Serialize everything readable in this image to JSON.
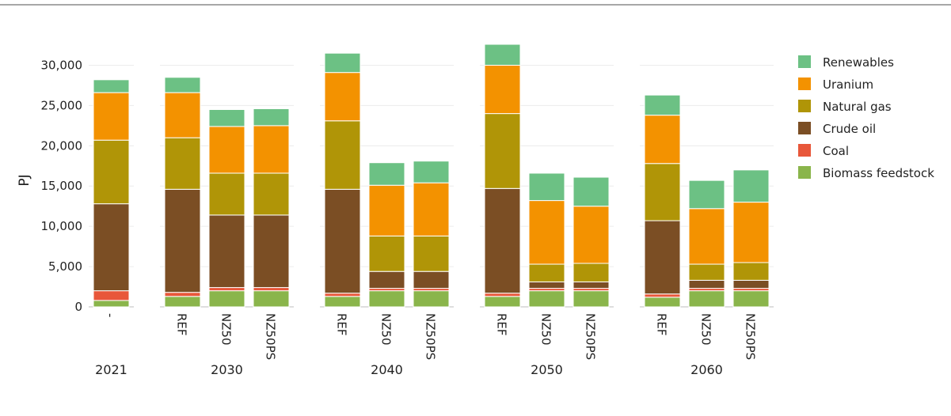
{
  "chart_data": {
    "type": "bar",
    "stacked": true,
    "ylabel": "PJ",
    "ylim": [
      0,
      32700
    ],
    "yticks": [
      0,
      5000,
      10000,
      15000,
      20000,
      25000,
      30000
    ],
    "ytick_labels": [
      "0",
      "5,000",
      "10,000",
      "15,000",
      "20,000",
      "25,000",
      "30,000"
    ],
    "grid": true,
    "legend_position": "right",
    "groups": [
      {
        "label": "2021",
        "bars": [
          {
            "scenario": "-",
            "values": {
              "Biomass feedstock": 800,
              "Coal": 1200,
              "Crude oil": 10800,
              "Natural gas": 7900,
              "Uranium": 5900,
              "Renewables": 1600
            }
          }
        ]
      },
      {
        "label": "2030",
        "bars": [
          {
            "scenario": "REF",
            "values": {
              "Biomass feedstock": 1300,
              "Coal": 500,
              "Crude oil": 12800,
              "Natural gas": 6400,
              "Uranium": 5600,
              "Renewables": 1900
            }
          },
          {
            "scenario": "NZ50",
            "values": {
              "Biomass feedstock": 2000,
              "Coal": 400,
              "Crude oil": 9000,
              "Natural gas": 5200,
              "Uranium": 5800,
              "Renewables": 2100
            }
          },
          {
            "scenario": "NZ50PS",
            "values": {
              "Biomass feedstock": 2000,
              "Coal": 400,
              "Crude oil": 9000,
              "Natural gas": 5200,
              "Uranium": 5900,
              "Renewables": 2100
            }
          }
        ]
      },
      {
        "label": "2040",
        "bars": [
          {
            "scenario": "REF",
            "values": {
              "Biomass feedstock": 1300,
              "Coal": 400,
              "Crude oil": 12900,
              "Natural gas": 8500,
              "Uranium": 6000,
              "Renewables": 2400
            }
          },
          {
            "scenario": "NZ50",
            "values": {
              "Biomass feedstock": 2000,
              "Coal": 300,
              "Crude oil": 2100,
              "Natural gas": 4400,
              "Uranium": 6300,
              "Renewables": 2800
            }
          },
          {
            "scenario": "NZ50PS",
            "values": {
              "Biomass feedstock": 2000,
              "Coal": 300,
              "Crude oil": 2100,
              "Natural gas": 4400,
              "Uranium": 6600,
              "Renewables": 2700
            }
          }
        ]
      },
      {
        "label": "2050",
        "bars": [
          {
            "scenario": "REF",
            "values": {
              "Biomass feedstock": 1300,
              "Coal": 400,
              "Crude oil": 13000,
              "Natural gas": 9300,
              "Uranium": 6000,
              "Renewables": 2600
            }
          },
          {
            "scenario": "NZ50",
            "values": {
              "Biomass feedstock": 2000,
              "Coal": 300,
              "Crude oil": 800,
              "Natural gas": 2200,
              "Uranium": 7900,
              "Renewables": 3400
            }
          },
          {
            "scenario": "NZ50PS",
            "values": {
              "Biomass feedstock": 2000,
              "Coal": 300,
              "Crude oil": 800,
              "Natural gas": 2300,
              "Uranium": 7100,
              "Renewables": 3600
            }
          }
        ]
      },
      {
        "label": "2060",
        "bars": [
          {
            "scenario": "REF",
            "values": {
              "Biomass feedstock": 1200,
              "Coal": 400,
              "Crude oil": 9100,
              "Natural gas": 7100,
              "Uranium": 6000,
              "Renewables": 2500
            }
          },
          {
            "scenario": "NZ50",
            "values": {
              "Biomass feedstock": 2000,
              "Coal": 300,
              "Crude oil": 1000,
              "Natural gas": 2000,
              "Uranium": 6900,
              "Renewables": 3500
            }
          },
          {
            "scenario": "NZ50PS",
            "values": {
              "Biomass feedstock": 2000,
              "Coal": 300,
              "Crude oil": 1000,
              "Natural gas": 2200,
              "Uranium": 7500,
              "Renewables": 4000
            }
          }
        ]
      }
    ],
    "series": [
      {
        "name": "Biomass feedstock",
        "color": "#8ab54b"
      },
      {
        "name": "Coal",
        "color": "#e8573a"
      },
      {
        "name": "Crude oil",
        "color": "#7b4e24"
      },
      {
        "name": "Natural gas",
        "color": "#b09507"
      },
      {
        "name": "Uranium",
        "color": "#f39200"
      },
      {
        "name": "Renewables",
        "color": "#6cc184"
      }
    ],
    "legend_order": [
      "Renewables",
      "Uranium",
      "Natural gas",
      "Crude oil",
      "Coal",
      "Biomass feedstock"
    ]
  }
}
